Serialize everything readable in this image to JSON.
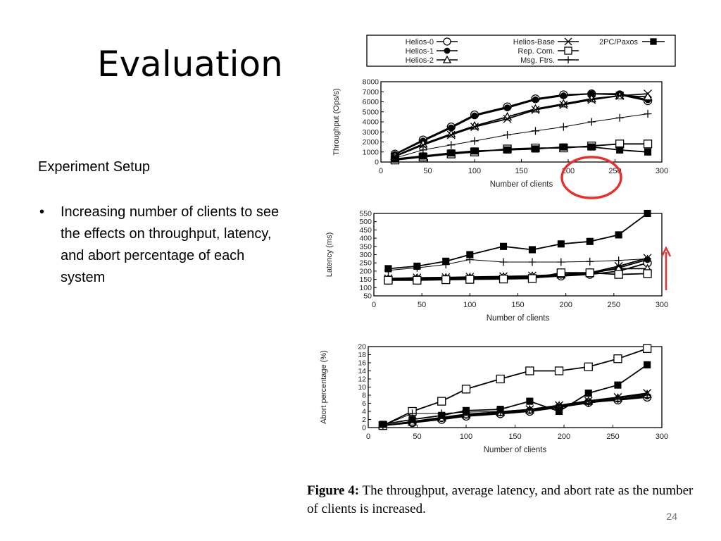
{
  "slide": {
    "title": "Evaluation",
    "heading": "Experiment Setup",
    "bullets": [
      "Increasing number of clients to see the effects on throughput, latency, and abort percentage of each system"
    ],
    "page_number": "24"
  },
  "caption": {
    "label": "Figure 4:",
    "text": "The throughput, average latency, and abort rate as the number of clients is increased."
  },
  "annotations": {
    "circle_color": "#e53030",
    "arrow_color": "#e53030"
  },
  "legend": [
    {
      "name": "Helios-0",
      "marker": "circle-open"
    },
    {
      "name": "Helios-1",
      "marker": "circle-filled"
    },
    {
      "name": "Helios-2",
      "marker": "triangle-open"
    },
    {
      "name": "Helios-Base",
      "marker": "x"
    },
    {
      "name": "Rep. Com.",
      "marker": "square-open"
    },
    {
      "name": "Msg. Ftrs.",
      "marker": "plus"
    },
    {
      "name": "2PC/Paxos",
      "marker": "square-filled"
    }
  ],
  "chart_data": [
    {
      "type": "line",
      "ylabel": "Throughput (Ops/s)",
      "xlabel": "Number of clients",
      "xlim": [
        0,
        300
      ],
      "ylim": [
        0,
        8000
      ],
      "xticks": [
        0,
        50,
        100,
        150,
        200,
        250,
        300
      ],
      "yticks": [
        0,
        1000,
        2000,
        3000,
        4000,
        5000,
        6000,
        7000,
        8000
      ],
      "x": [
        15,
        45,
        75,
        100,
        135,
        165,
        195,
        225,
        255,
        285
      ],
      "series": [
        {
          "name": "Helios-0",
          "values": [
            800,
            2200,
            3500,
            4700,
            5500,
            6300,
            6700,
            6800,
            6700,
            6100
          ]
        },
        {
          "name": "Helios-1",
          "values": [
            750,
            2100,
            3400,
            4600,
            5400,
            6200,
            6600,
            6800,
            6800,
            6200
          ]
        },
        {
          "name": "Helios-2",
          "values": [
            600,
            1800,
            2800,
            3600,
            4500,
            5300,
            5800,
            6300,
            6600,
            6500
          ]
        },
        {
          "name": "Helios-Base",
          "values": [
            550,
            1700,
            2700,
            3500,
            4300,
            5200,
            5700,
            6200,
            6600,
            6800
          ]
        },
        {
          "name": "Rep. Com.",
          "values": [
            200,
            500,
            800,
            1000,
            1300,
            1400,
            1400,
            1600,
            1800,
            1800
          ]
        },
        {
          "name": "Msg. Ftrs.",
          "values": [
            400,
            1200,
            1700,
            2100,
            2700,
            3100,
            3500,
            4000,
            4400,
            4800
          ]
        },
        {
          "name": "2PC/Paxos",
          "values": [
            300,
            600,
            900,
            1100,
            1200,
            1300,
            1500,
            1500,
            1200,
            1000
          ]
        }
      ]
    },
    {
      "type": "line",
      "ylabel": "Latency (ms)",
      "xlabel": "Number of clients",
      "xlim": [
        0,
        300
      ],
      "ylim": [
        50,
        550
      ],
      "xticks": [
        0,
        50,
        100,
        150,
        200,
        250,
        300
      ],
      "yticks": [
        50,
        100,
        150,
        200,
        250,
        300,
        350,
        400,
        450,
        500,
        550
      ],
      "x": [
        15,
        45,
        75,
        100,
        135,
        165,
        195,
        225,
        255,
        285
      ],
      "series": [
        {
          "name": "Helios-0",
          "values": [
            145,
            148,
            150,
            152,
            155,
            160,
            170,
            180,
            200,
            250
          ]
        },
        {
          "name": "Helios-1",
          "values": [
            150,
            152,
            155,
            158,
            160,
            165,
            175,
            185,
            220,
            270
          ]
        },
        {
          "name": "Helios-2",
          "values": [
            155,
            158,
            160,
            162,
            165,
            170,
            178,
            190,
            215,
            215
          ]
        },
        {
          "name": "Helios-Base",
          "values": [
            155,
            160,
            162,
            165,
            168,
            172,
            180,
            190,
            230,
            280
          ]
        },
        {
          "name": "Rep. Com.",
          "values": [
            145,
            145,
            148,
            150,
            152,
            155,
            190,
            190,
            180,
            185
          ]
        },
        {
          "name": "Msg. Ftrs.",
          "values": [
            205,
            220,
            240,
            270,
            255,
            255,
            255,
            258,
            265,
            275
          ]
        },
        {
          "name": "2PC/Paxos",
          "values": [
            215,
            230,
            260,
            300,
            350,
            330,
            365,
            380,
            420,
            550
          ]
        }
      ]
    },
    {
      "type": "line",
      "ylabel": "Abort percentage (%)",
      "xlabel": "Number of clients",
      "xlim": [
        0,
        300
      ],
      "ylim": [
        0,
        20
      ],
      "xticks": [
        0,
        50,
        100,
        150,
        200,
        250,
        300
      ],
      "yticks": [
        0,
        2,
        4,
        6,
        8,
        10,
        12,
        14,
        16,
        18,
        20
      ],
      "x": [
        15,
        45,
        75,
        100,
        135,
        165,
        195,
        225,
        255,
        285
      ],
      "series": [
        {
          "name": "Helios-0",
          "values": [
            0.5,
            1.2,
            2.0,
            2.8,
            3.4,
            4.0,
            5.0,
            6.2,
            6.8,
            7.5
          ]
        },
        {
          "name": "Helios-1",
          "values": [
            0.5,
            1.3,
            2.2,
            3.0,
            3.6,
            4.2,
            5.2,
            6.3,
            7.0,
            7.8
          ]
        },
        {
          "name": "Helios-2",
          "values": [
            0.5,
            1.4,
            2.4,
            3.2,
            3.8,
            4.4,
            5.4,
            6.5,
            7.3,
            8.2
          ]
        },
        {
          "name": "Helios-Base",
          "values": [
            0.5,
            1.5,
            2.5,
            3.3,
            3.9,
            4.5,
            5.5,
            6.6,
            7.5,
            8.5
          ]
        },
        {
          "name": "Rep. Com.",
          "values": [
            0.5,
            4.0,
            6.5,
            9.5,
            12.0,
            14.0,
            14.0,
            15.0,
            17.0,
            19.5
          ]
        },
        {
          "name": "Msg. Ftrs.",
          "values": [
            0.5,
            3.5,
            3.5,
            3.8,
            4.0,
            4.5,
            5.0,
            6.0,
            7.0,
            8.0
          ]
        },
        {
          "name": "2PC/Paxos",
          "values": [
            0.8,
            2.0,
            3.0,
            4.2,
            4.5,
            6.5,
            4.0,
            8.5,
            10.5,
            15.5
          ]
        }
      ]
    }
  ]
}
